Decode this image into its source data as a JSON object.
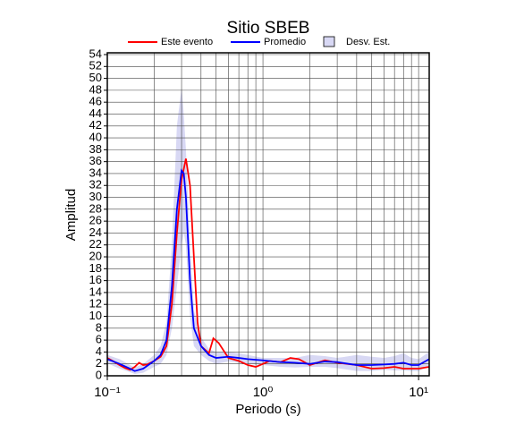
{
  "chart_data": {
    "type": "line",
    "title": "Sitio SBEB",
    "xlabel": "Periodo (s)",
    "ylabel": "Amplitud",
    "xscale": "log",
    "grid": true,
    "xlim": [
      0.1,
      11.7
    ],
    "ylim": [
      0,
      54.3
    ],
    "xticks": [
      {
        "value": 0.1,
        "label": "10⁻¹"
      },
      {
        "value": 1,
        "label": "10⁰"
      },
      {
        "value": 10,
        "label": "10¹"
      }
    ],
    "xminorticks": [
      0.2,
      0.3,
      0.4,
      0.5,
      0.6,
      0.7,
      0.8,
      0.9,
      2,
      3,
      4,
      5,
      6,
      7,
      8,
      9
    ],
    "yticks": [
      0,
      2,
      4,
      6,
      8,
      10,
      12,
      14,
      16,
      18,
      20,
      22,
      24,
      26,
      28,
      30,
      32,
      34,
      36,
      38,
      40,
      42,
      44,
      46,
      48,
      50,
      52,
      54
    ],
    "series": [
      {
        "name": "Este evento",
        "color": "#ff0000",
        "x": [
          0.1,
          0.11,
          0.12,
          0.13,
          0.14,
          0.15,
          0.16,
          0.17,
          0.18,
          0.2,
          0.22,
          0.24,
          0.26,
          0.28,
          0.3,
          0.32,
          0.34,
          0.36,
          0.38,
          0.4,
          0.45,
          0.48,
          0.52,
          0.6,
          0.7,
          0.8,
          0.9,
          1.0,
          1.1,
          1.3,
          1.5,
          1.7,
          2,
          2.5,
          3,
          4,
          5,
          6,
          7,
          8,
          10,
          11.7
        ],
        "values": [
          3.0,
          2.4,
          1.8,
          1.3,
          1.0,
          1.5,
          2.2,
          1.8,
          1.9,
          2.5,
          3.2,
          5,
          12,
          24,
          33,
          36.5,
          32,
          20,
          9,
          5,
          3.8,
          6.3,
          5.5,
          3,
          2.5,
          1.8,
          1.5,
          2,
          2.5,
          2.3,
          3.0,
          2.8,
          1.8,
          2.6,
          2.2,
          1.8,
          1.2,
          1.3,
          1.5,
          1.2,
          1.2,
          1.5
        ]
      },
      {
        "name": "Promedio",
        "color": "#0000ff",
        "x": [
          0.1,
          0.12,
          0.14,
          0.15,
          0.17,
          0.2,
          0.22,
          0.24,
          0.26,
          0.28,
          0.3,
          0.31,
          0.32,
          0.34,
          0.36,
          0.4,
          0.45,
          0.5,
          0.6,
          0.7,
          0.8,
          1,
          1.3,
          1.6,
          2,
          2.5,
          3,
          4,
          5,
          6,
          7,
          8,
          9,
          10,
          11.7
        ],
        "values": [
          2.8,
          2.0,
          1.2,
          0.8,
          1.2,
          2.5,
          3.5,
          6,
          15,
          28,
          34.5,
          34,
          30,
          16,
          8,
          5,
          3.5,
          3.0,
          3.2,
          3.0,
          2.8,
          2.6,
          2.3,
          2.2,
          2.0,
          2.4,
          2.3,
          1.8,
          1.8,
          1.9,
          2.0,
          2.2,
          1.8,
          1.8,
          2.8
        ]
      },
      {
        "name": "Desv. Est.",
        "color": "#d8d8f4",
        "x": [
          0.1,
          0.12,
          0.14,
          0.15,
          0.17,
          0.2,
          0.22,
          0.24,
          0.26,
          0.28,
          0.3,
          0.31,
          0.32,
          0.34,
          0.36,
          0.4,
          0.45,
          0.5,
          0.6,
          0.7,
          0.8,
          1,
          1.3,
          1.6,
          2,
          2.5,
          3,
          4,
          5,
          6,
          7,
          8,
          9,
          10,
          11.7
        ],
        "upper": [
          3.5,
          2.8,
          1.8,
          1.4,
          2.0,
          3.5,
          5,
          9,
          22,
          42,
          48.5,
          44,
          38,
          22,
          11,
          6.5,
          4.5,
          4,
          4,
          3.8,
          3.5,
          3,
          3,
          3,
          3.5,
          3.3,
          3,
          3.5,
          3.2,
          3.0,
          3.3,
          3.8,
          3.0,
          2.8,
          4.0
        ],
        "lower": [
          2.1,
          1.2,
          0.6,
          0.3,
          0.5,
          1.5,
          2,
          3.5,
          8,
          15,
          22,
          24,
          22,
          10,
          5,
          3.5,
          2.5,
          2,
          2.4,
          2.2,
          2.0,
          1.8,
          1.5,
          1.4,
          1.5,
          1.5,
          1.3,
          0.8,
          0.8,
          1,
          0.9,
          0.9,
          0.8,
          0.8,
          1.6
        ]
      }
    ]
  }
}
